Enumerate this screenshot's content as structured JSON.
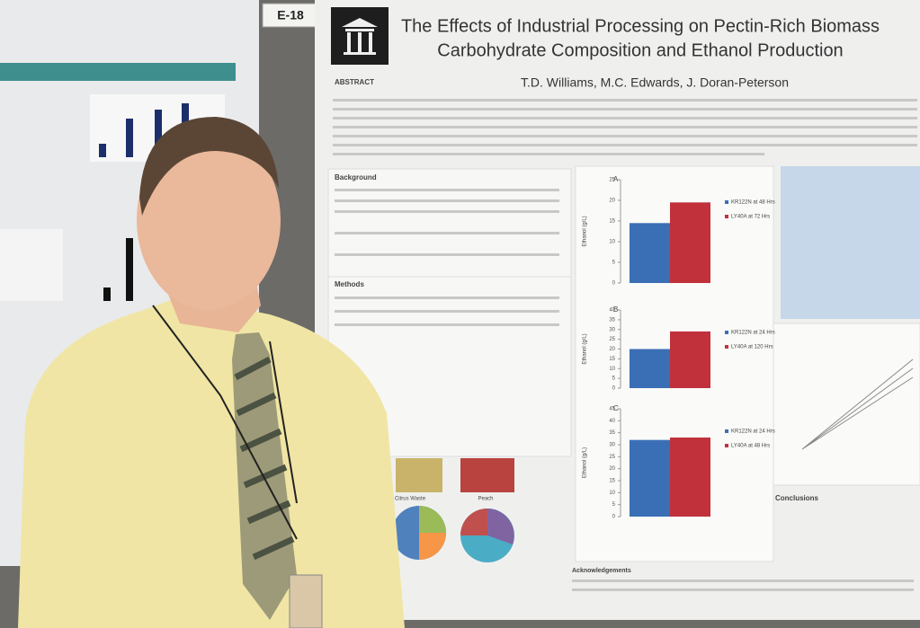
{
  "sign": "E-18",
  "poster": {
    "title_line1": "The Effects of Industrial Processing on Pectin-Rich Biomass",
    "title_line2": "Carbohydrate Composition and Ethanol Production",
    "authors": "T.D. Williams, M.C. Edwards, J. Doran-Peterson",
    "sections": [
      "ABSTRACT",
      "Background",
      "Methods",
      "Conclusions",
      "Acknowledgements"
    ],
    "pie_labels": [
      "Citrus Waste",
      "Peach"
    ],
    "y_label": "Ethanol (g/L)",
    "charts": [
      {
        "type": "bar",
        "panel": "A",
        "ylim": [
          0,
          25
        ],
        "yticks": [
          0,
          5,
          10,
          15,
          20,
          25
        ],
        "series": [
          {
            "name": "KR122N at 48 Hrs",
            "color": "#3a6fb5",
            "values": [
              14.5
            ]
          },
          {
            "name": "LY40A at 72 Hrs",
            "color": "#c0313b",
            "values": [
              19.5
            ]
          }
        ]
      },
      {
        "type": "bar",
        "panel": "B",
        "ylim": [
          0,
          40
        ],
        "yticks": [
          0,
          5,
          10,
          15,
          20,
          25,
          30,
          35,
          40
        ],
        "series": [
          {
            "name": "KR122N at 24 Hrs",
            "color": "#3a6fb5",
            "values": [
              20
            ]
          },
          {
            "name": "LY40A at 120 Hrs",
            "color": "#c0313b",
            "values": [
              29
            ]
          }
        ]
      },
      {
        "type": "bar",
        "panel": "C",
        "ylim": [
          0,
          45
        ],
        "yticks": [
          0,
          5,
          10,
          15,
          20,
          25,
          30,
          35,
          40,
          45
        ],
        "series": [
          {
            "name": "KR122N at 24 Hrs",
            "color": "#3a6fb5",
            "values": [
              32
            ]
          },
          {
            "name": "LY40A at 48 Hrs",
            "color": "#c0313b",
            "values": [
              33
            ]
          }
        ]
      }
    ]
  }
}
